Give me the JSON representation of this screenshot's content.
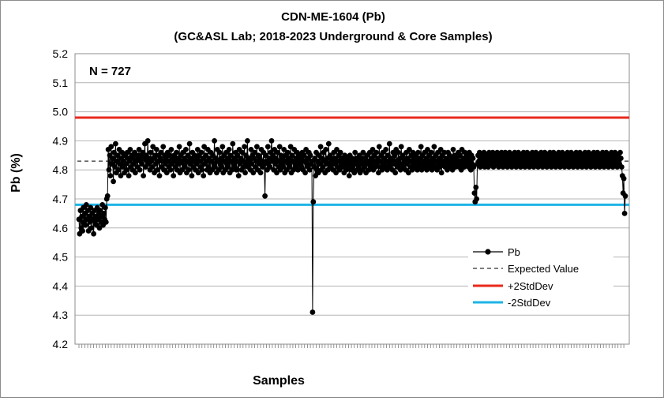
{
  "chart_data": {
    "type": "line",
    "title": "CDN-ME-1604 (Pb)",
    "subtitle": "(GC&ASL Lab; 2018-2023 Underground & Core Samples)",
    "xlabel": "Samples",
    "ylabel": "Pb (%)",
    "annotation": "N = 727",
    "n_samples": 727,
    "ylim": [
      4.2,
      5.2
    ],
    "yticks": [
      "4.2",
      "4.3",
      "4.4",
      "4.5",
      "4.6",
      "4.7",
      "4.8",
      "4.9",
      "5.0",
      "5.1",
      "5.2"
    ],
    "grid": "horizontal",
    "legend_position": "bottom-right",
    "reference_lines": {
      "expected_value": 4.83,
      "plus_2sd": 4.98,
      "minus_2sd": 4.68
    },
    "series": [
      {
        "name": "Pb",
        "style": "line-markers",
        "color": "#000000",
        "values": [
          4.63,
          4.58,
          4.66,
          4.6,
          4.64,
          4.59,
          4.67,
          4.62,
          4.65,
          4.61,
          4.68,
          4.63,
          4.66,
          4.59,
          4.64,
          4.62,
          4.67,
          4.6,
          4.65,
          4.63,
          4.58,
          4.66,
          4.62,
          4.64,
          4.61,
          4.67,
          4.63,
          4.65,
          4.6,
          4.66,
          4.62,
          4.64,
          4.68,
          4.61,
          4.65,
          4.63,
          4.67,
          4.62,
          4.7,
          4.71,
          4.87,
          4.8,
          4.85,
          4.78,
          4.88,
          4.82,
          4.84,
          4.76,
          4.86,
          4.81,
          4.89,
          4.79,
          4.83,
          4.85,
          4.8,
          4.87,
          4.82,
          4.78,
          4.84,
          4.86,
          4.81,
          4.83,
          4.79,
          4.85,
          4.82,
          4.8,
          4.86,
          4.84,
          4.78,
          4.83,
          4.87,
          4.81,
          4.85,
          4.8,
          4.84,
          4.82,
          4.86,
          4.79,
          4.83,
          4.85,
          4.81,
          4.84,
          4.87,
          4.8,
          4.83,
          4.85,
          4.82,
          4.86,
          4.78,
          4.84,
          4.89,
          4.81,
          4.85,
          4.83,
          4.9,
          4.82,
          4.84,
          4.8,
          4.86,
          4.83,
          4.81,
          4.88,
          4.84,
          4.79,
          4.85,
          4.82,
          4.87,
          4.8,
          4.83,
          4.85,
          4.78,
          4.84,
          4.86,
          4.81,
          4.83,
          4.88,
          4.8,
          4.85,
          4.82,
          4.84,
          4.79,
          4.86,
          4.83,
          4.81,
          4.85,
          4.8,
          4.87,
          4.82,
          4.84,
          4.78,
          4.85,
          4.83,
          4.81,
          4.86,
          4.8,
          4.84,
          4.82,
          4.88,
          4.79,
          4.85,
          4.83,
          4.8,
          4.86,
          4.82,
          4.84,
          4.81,
          4.87,
          4.79,
          4.83,
          4.85,
          4.8,
          4.89,
          4.82,
          4.84,
          4.78,
          4.86,
          4.81,
          4.83,
          4.85,
          4.8,
          4.84,
          4.82,
          4.87,
          4.79,
          4.85,
          4.83,
          4.81,
          4.86,
          4.8,
          4.84,
          4.78,
          4.88,
          4.82,
          4.85,
          4.83,
          4.8,
          4.87,
          4.81,
          4.84,
          4.79,
          4.86,
          4.83,
          4.8,
          4.85,
          4.82,
          4.9,
          4.81,
          4.84,
          4.79,
          4.87,
          4.83,
          4.8,
          4.86,
          4.82,
          4.84,
          4.81,
          4.88,
          4.79,
          4.85,
          4.83,
          4.8,
          4.86,
          4.82,
          4.84,
          4.81,
          4.87,
          4.79,
          4.85,
          4.83,
          4.8,
          4.89,
          4.82,
          4.84,
          4.81,
          4.86,
          4.8,
          4.85,
          4.83,
          4.78,
          4.87,
          4.82,
          4.84,
          4.8,
          4.86,
          4.83,
          4.81,
          4.88,
          4.79,
          4.85,
          4.82,
          4.9,
          4.81,
          4.84,
          4.83,
          4.8,
          4.87,
          4.82,
          4.85,
          4.79,
          4.84,
          4.86,
          4.81,
          4.83,
          4.88,
          4.8,
          4.85,
          4.82,
          4.84,
          4.79,
          4.87,
          4.83,
          4.81,
          4.86,
          4.82,
          4.71,
          4.85,
          4.83,
          4.8,
          4.88,
          4.82,
          4.84,
          4.81,
          4.86,
          4.9,
          4.83,
          4.85,
          4.8,
          4.87,
          4.82,
          4.84,
          4.79,
          4.86,
          4.83,
          4.81,
          4.88,
          4.8,
          4.85,
          4.82,
          4.84,
          4.81,
          4.87,
          4.79,
          4.83,
          4.85,
          4.8,
          4.86,
          4.82,
          4.84,
          4.81,
          4.88,
          4.79,
          4.85,
          4.83,
          4.8,
          4.87,
          4.82,
          4.84,
          4.81,
          4.86,
          4.8,
          4.85,
          4.83,
          4.82,
          4.84,
          4.81,
          4.86,
          4.8,
          4.85,
          4.83,
          4.79,
          4.87,
          4.82,
          4.84,
          4.81,
          4.86,
          4.8,
          4.85,
          4.82,
          4.83,
          4.31,
          4.69,
          4.81,
          4.84,
          4.78,
          4.86,
          4.8,
          4.83,
          4.79,
          4.85,
          4.82,
          4.88,
          4.8,
          4.84,
          4.81,
          4.86,
          4.83,
          4.79,
          4.87,
          4.82,
          4.84,
          4.8,
          4.89,
          4.82,
          4.85,
          4.81,
          4.84,
          4.83,
          4.8,
          4.86,
          4.82,
          4.84,
          4.79,
          4.87,
          4.81,
          4.83,
          4.85,
          4.8,
          4.86,
          4.82,
          4.84,
          4.81,
          4.83,
          4.79,
          4.85,
          4.82,
          4.8,
          4.84,
          4.81,
          4.83,
          4.78,
          4.85,
          4.82,
          4.8,
          4.84,
          4.81,
          4.83,
          4.79,
          4.86,
          4.82,
          4.84,
          4.8,
          4.83,
          4.81,
          4.85,
          4.79,
          4.84,
          4.82,
          4.8,
          4.86,
          4.83,
          4.81,
          4.84,
          4.79,
          4.85,
          4.82,
          4.83,
          4.8,
          4.86,
          4.81,
          4.84,
          4.82,
          4.87,
          4.8,
          4.85,
          4.83,
          4.81,
          4.86,
          4.82,
          4.84,
          4.79,
          4.88,
          4.83,
          4.81,
          4.85,
          4.8,
          4.86,
          4.82,
          4.84,
          4.81,
          4.87,
          4.83,
          4.8,
          4.85,
          4.82,
          4.89,
          4.81,
          4.84,
          4.83,
          4.8,
          4.86,
          4.82,
          4.85,
          4.79,
          4.87,
          4.83,
          4.81,
          4.86,
          4.82,
          4.84,
          4.8,
          4.88,
          4.82,
          4.85,
          4.81,
          4.84,
          4.83,
          4.8,
          4.86,
          4.82,
          4.84,
          4.79,
          4.87,
          4.83,
          4.81,
          4.85,
          4.8,
          4.86,
          4.82,
          4.84,
          4.81,
          4.85,
          4.83,
          4.8,
          4.86,
          4.82,
          4.84,
          4.81,
          4.88,
          4.8,
          4.85,
          4.83,
          4.82,
          4.86,
          4.81,
          4.84,
          4.8,
          4.87,
          4.82,
          4.85,
          4.83,
          4.81,
          4.86,
          4.8,
          4.84,
          4.82,
          4.88,
          4.81,
          4.85,
          4.83,
          4.8,
          4.86,
          4.82,
          4.84,
          4.81,
          4.87,
          4.79,
          4.85,
          4.83,
          4.82,
          4.86,
          4.81,
          4.84,
          4.83,
          4.8,
          4.86,
          4.82,
          4.85,
          4.81,
          4.84,
          4.83,
          4.8,
          4.87,
          4.82,
          4.85,
          4.81,
          4.84,
          4.83,
          4.82,
          4.86,
          4.81,
          4.85,
          4.83,
          4.8,
          4.87,
          4.82,
          4.84,
          4.81,
          4.86,
          4.83,
          4.85,
          4.82,
          4.84,
          4.81,
          4.86,
          4.83,
          4.8,
          4.85,
          4.82,
          4.84,
          4.81,
          4.72,
          4.69,
          4.74,
          4.7,
          4.82,
          4.85,
          4.83,
          4.86,
          4.81,
          4.84,
          4.82,
          4.85,
          4.83,
          4.86,
          4.81,
          4.84,
          4.82,
          4.85,
          4.83,
          4.81,
          4.86,
          4.84,
          4.82,
          4.85,
          4.83,
          4.86,
          4.81,
          4.84,
          4.83,
          4.85,
          4.82,
          4.86,
          4.84,
          4.81,
          4.85,
          4.83,
          4.82,
          4.86,
          4.84,
          4.81,
          4.85,
          4.83,
          4.86,
          4.82,
          4.84,
          4.81,
          4.85,
          4.83,
          4.86,
          4.82,
          4.84,
          4.81,
          4.85,
          4.83,
          4.82,
          4.86,
          4.84,
          4.81,
          4.85,
          4.83,
          4.86,
          4.82,
          4.84,
          4.81,
          4.85,
          4.83,
          4.82,
          4.86,
          4.84,
          4.81,
          4.85,
          4.83,
          4.86,
          4.82,
          4.84,
          4.81,
          4.85,
          4.83,
          4.82,
          4.86,
          4.84,
          4.81,
          4.85,
          4.83,
          4.86,
          4.82,
          4.84,
          4.81,
          4.85,
          4.83,
          4.82,
          4.86,
          4.84,
          4.81,
          4.85,
          4.83,
          4.86,
          4.82,
          4.84,
          4.81,
          4.85,
          4.83,
          4.82,
          4.86,
          4.84,
          4.81,
          4.85,
          4.83,
          4.86,
          4.82,
          4.84,
          4.81,
          4.85,
          4.83,
          4.82,
          4.86,
          4.84,
          4.81,
          4.85,
          4.83,
          4.86,
          4.82,
          4.84,
          4.81,
          4.85,
          4.83,
          4.82,
          4.86,
          4.84,
          4.81,
          4.85,
          4.83,
          4.86,
          4.82,
          4.84,
          4.81,
          4.85,
          4.83,
          4.82,
          4.86,
          4.84,
          4.81,
          4.85,
          4.83,
          4.86,
          4.82,
          4.84,
          4.81,
          4.85,
          4.83,
          4.82,
          4.86,
          4.84,
          4.81,
          4.85,
          4.83,
          4.86,
          4.82,
          4.84,
          4.81,
          4.85,
          4.83,
          4.82,
          4.86,
          4.84,
          4.81,
          4.85,
          4.83,
          4.86,
          4.82,
          4.84,
          4.81,
          4.85,
          4.83,
          4.82,
          4.86,
          4.84,
          4.81,
          4.85,
          4.83,
          4.86,
          4.82,
          4.84,
          4.81,
          4.85,
          4.83,
          4.82,
          4.86,
          4.84,
          4.81,
          4.85,
          4.83,
          4.86,
          4.82,
          4.84,
          4.81,
          4.85,
          4.83,
          4.82,
          4.86,
          4.84,
          4.81,
          4.78,
          4.72,
          4.77,
          4.65,
          4.71
        ]
      },
      {
        "name": "Expected Value",
        "style": "dashed",
        "color": "#303030"
      },
      {
        "name": "+2StdDev",
        "style": "solid",
        "color": "#e8291c"
      },
      {
        "name": "-2StdDev",
        "style": "solid",
        "color": "#1eb4e6"
      }
    ]
  }
}
